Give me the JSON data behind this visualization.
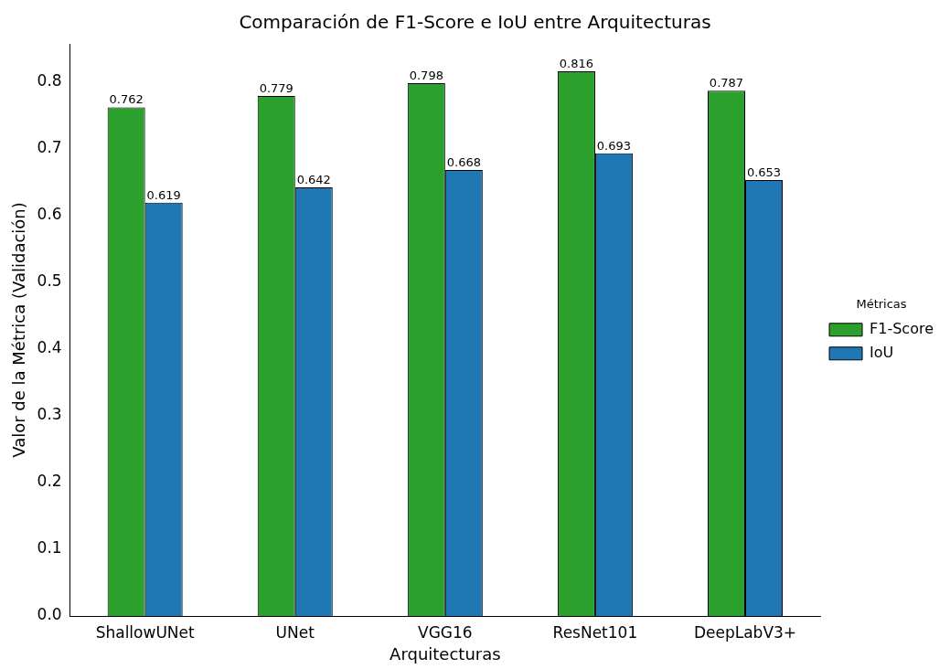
{
  "chart_data": {
    "type": "bar",
    "title": "Comparación de F1-Score e IoU entre Arquitecturas",
    "xlabel": "Arquitecturas",
    "ylabel": "Valor de la Métrica (Validación)",
    "legend_title": "Métricas",
    "categories": [
      "ShallowUNet",
      "UNet",
      "VGG16",
      "ResNet101",
      "DeepLabV3+"
    ],
    "series": [
      {
        "name": "F1-Score",
        "color": "#2ca02c",
        "values": [
          0.762,
          0.779,
          0.798,
          0.816,
          0.787
        ]
      },
      {
        "name": "IoU",
        "color": "#1f77b4",
        "values": [
          0.619,
          0.642,
          0.668,
          0.693,
          0.653
        ]
      }
    ],
    "ylim": [
      0,
      0.857
    ],
    "yticks": [
      {
        "value": 0,
        "label": "0.0"
      },
      {
        "value": 0.1,
        "label": "0.1"
      },
      {
        "value": 0.2,
        "label": "0.2"
      },
      {
        "value": 0.3,
        "label": "0.3"
      },
      {
        "value": 0.4,
        "label": "0.4"
      },
      {
        "value": 0.5,
        "label": "0.5"
      },
      {
        "value": 0.6,
        "label": "0.6"
      },
      {
        "value": 0.7,
        "label": "0.7"
      },
      {
        "value": 0.8,
        "label": "0.8"
      }
    ],
    "data_labels": true,
    "legend": "right",
    "grid": false
  }
}
